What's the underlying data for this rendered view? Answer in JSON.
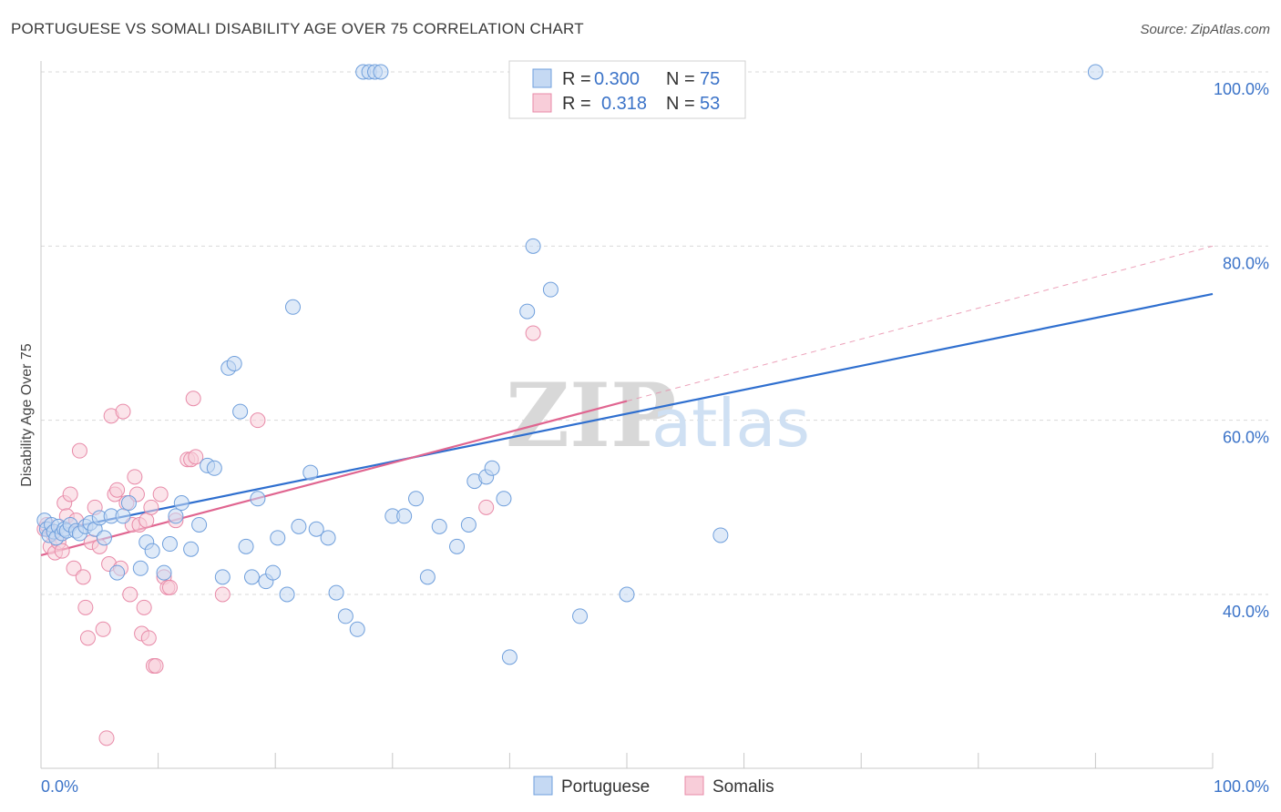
{
  "title": "PORTUGUESE VS SOMALI DISABILITY AGE OVER 75 CORRELATION CHART",
  "source": "Source: ZipAtlas.com",
  "watermark": {
    "zip": "ZIP",
    "atlas": "atlas"
  },
  "colors": {
    "portuguese": "#6f9fdc",
    "portuguese_fill": "#c5d9f3",
    "portuguese_line": "#2f6fcf",
    "somalis": "#e88aa8",
    "somalis_fill": "#f8cdd9",
    "somalis_line": "#e06590",
    "grid": "#d9d9d9",
    "axis_text": "#3b73c8"
  },
  "legend": {
    "rows": [
      {
        "r_label": "R =",
        "r_value": "0.300",
        "n_label": "N =",
        "n_value": "75"
      },
      {
        "r_label": "R =",
        "r_value": "0.318",
        "n_label": "N =",
        "n_value": "53"
      }
    ]
  },
  "bottom_legend": [
    "Portuguese",
    "Somalis"
  ],
  "chart_data": {
    "type": "scatter",
    "title": "PORTUGUESE VS SOMALI DISABILITY AGE OVER 75 CORRELATION CHART",
    "xlabel": "",
    "ylabel": "Disability Age Over 75",
    "xlim": [
      0,
      100
    ],
    "ylim": [
      20,
      102
    ],
    "x_tick_labels": [
      "0.0%",
      "100.0%"
    ],
    "y_ticks": [
      40,
      60,
      80,
      100
    ],
    "y_tick_labels": [
      "40.0%",
      "60.0%",
      "80.0%",
      "100.0%"
    ],
    "series": [
      {
        "name": "Portuguese",
        "r": 0.3,
        "n": 75,
        "trend": {
          "x": [
            0,
            100
          ],
          "y": [
            47.0,
            74.5
          ]
        },
        "points": [
          [
            0.3,
            48.5
          ],
          [
            0.5,
            47.5
          ],
          [
            0.7,
            46.8
          ],
          [
            0.9,
            48.0
          ],
          [
            1.1,
            47.2
          ],
          [
            1.3,
            46.5
          ],
          [
            1.5,
            47.8
          ],
          [
            1.8,
            47.0
          ],
          [
            2.0,
            47.5
          ],
          [
            2.2,
            47.3
          ],
          [
            2.5,
            48.0
          ],
          [
            3.0,
            47.3
          ],
          [
            3.3,
            47.0
          ],
          [
            3.8,
            47.8
          ],
          [
            4.2,
            48.2
          ],
          [
            4.6,
            47.5
          ],
          [
            5.0,
            48.8
          ],
          [
            5.4,
            46.5
          ],
          [
            6.0,
            49.0
          ],
          [
            6.5,
            42.5
          ],
          [
            7.0,
            49.0
          ],
          [
            7.5,
            50.5
          ],
          [
            8.5,
            43.0
          ],
          [
            9.0,
            46.0
          ],
          [
            9.5,
            45.0
          ],
          [
            10.5,
            42.5
          ],
          [
            11.0,
            45.8
          ],
          [
            11.5,
            49.0
          ],
          [
            12.0,
            50.5
          ],
          [
            12.8,
            45.2
          ],
          [
            13.5,
            48.0
          ],
          [
            14.2,
            54.8
          ],
          [
            14.8,
            54.5
          ],
          [
            15.5,
            42.0
          ],
          [
            16.0,
            66.0
          ],
          [
            16.5,
            66.5
          ],
          [
            17.0,
            61.0
          ],
          [
            17.5,
            45.5
          ],
          [
            18.0,
            42.0
          ],
          [
            18.5,
            51.0
          ],
          [
            19.2,
            41.5
          ],
          [
            19.8,
            42.5
          ],
          [
            20.2,
            46.5
          ],
          [
            21.0,
            40.0
          ],
          [
            21.5,
            73.0
          ],
          [
            22.0,
            47.8
          ],
          [
            23.0,
            54.0
          ],
          [
            23.5,
            47.5
          ],
          [
            24.5,
            46.5
          ],
          [
            25.2,
            40.2
          ],
          [
            26.0,
            37.5
          ],
          [
            27.0,
            36.0
          ],
          [
            27.5,
            100.0
          ],
          [
            28.0,
            100.0
          ],
          [
            28.5,
            100.0
          ],
          [
            29.0,
            100.0
          ],
          [
            30.0,
            49.0
          ],
          [
            31.0,
            49.0
          ],
          [
            32.0,
            51.0
          ],
          [
            33.0,
            42.0
          ],
          [
            34.0,
            47.8
          ],
          [
            35.5,
            45.5
          ],
          [
            36.5,
            48.0
          ],
          [
            37.0,
            53.0
          ],
          [
            38.0,
            53.5
          ],
          [
            38.5,
            54.5
          ],
          [
            39.5,
            51.0
          ],
          [
            40.0,
            32.8
          ],
          [
            41.5,
            72.5
          ],
          [
            42.0,
            80.0
          ],
          [
            43.5,
            75.0
          ],
          [
            46.0,
            37.5
          ],
          [
            50.0,
            40.0
          ],
          [
            58.0,
            46.8
          ],
          [
            90.0,
            100.0
          ]
        ]
      },
      {
        "name": "Somalis",
        "r": 0.318,
        "n": 53,
        "trend": {
          "x": [
            0,
            50
          ],
          "y": [
            44.5,
            62.2
          ]
        },
        "trend_extension": {
          "x": [
            50,
            100
          ],
          "y": [
            62.2,
            80.0
          ]
        },
        "points": [
          [
            0.3,
            47.5
          ],
          [
            0.5,
            48.0
          ],
          [
            0.8,
            45.5
          ],
          [
            1.0,
            47.0
          ],
          [
            1.2,
            44.8
          ],
          [
            1.5,
            46.0
          ],
          [
            1.8,
            45.0
          ],
          [
            2.0,
            50.5
          ],
          [
            2.2,
            49.0
          ],
          [
            2.5,
            51.5
          ],
          [
            2.8,
            43.0
          ],
          [
            3.0,
            48.5
          ],
          [
            3.3,
            56.5
          ],
          [
            3.6,
            42.0
          ],
          [
            3.8,
            38.5
          ],
          [
            4.0,
            35.0
          ],
          [
            4.3,
            46.0
          ],
          [
            4.6,
            50.0
          ],
          [
            5.0,
            45.5
          ],
          [
            5.3,
            36.0
          ],
          [
            5.6,
            23.5
          ],
          [
            5.8,
            43.5
          ],
          [
            6.0,
            60.5
          ],
          [
            6.3,
            51.5
          ],
          [
            6.5,
            52.0
          ],
          [
            6.8,
            43.0
          ],
          [
            7.0,
            61.0
          ],
          [
            7.3,
            50.5
          ],
          [
            7.6,
            40.0
          ],
          [
            7.8,
            48.0
          ],
          [
            8.0,
            53.5
          ],
          [
            8.2,
            51.5
          ],
          [
            8.4,
            48.0
          ],
          [
            8.6,
            35.5
          ],
          [
            8.8,
            38.5
          ],
          [
            9.0,
            48.5
          ],
          [
            9.2,
            35.0
          ],
          [
            9.4,
            50.0
          ],
          [
            9.6,
            31.8
          ],
          [
            9.8,
            31.8
          ],
          [
            10.2,
            51.5
          ],
          [
            10.5,
            42.0
          ],
          [
            10.8,
            40.8
          ],
          [
            11.0,
            40.8
          ],
          [
            11.5,
            48.5
          ],
          [
            12.5,
            55.5
          ],
          [
            12.8,
            55.5
          ],
          [
            13.0,
            62.5
          ],
          [
            15.5,
            40.0
          ],
          [
            18.5,
            60.0
          ],
          [
            38.0,
            50.0
          ],
          [
            42.0,
            70.0
          ],
          [
            13.2,
            55.8
          ]
        ]
      }
    ]
  }
}
